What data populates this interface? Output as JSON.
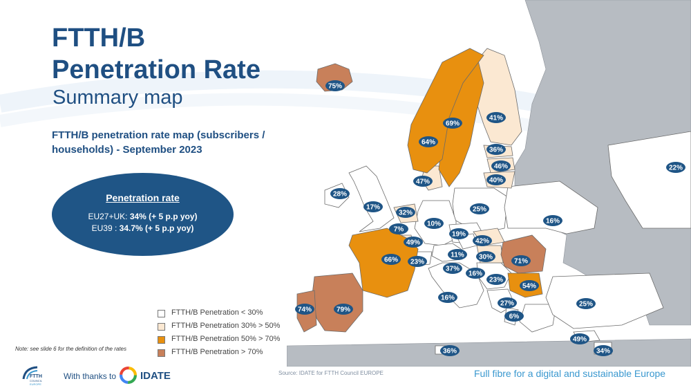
{
  "title": {
    "line1": "FTTH/B",
    "line2": "Penetration Rate",
    "subtitle": "Summary map"
  },
  "map_heading": "FTTH/B penetration rate map (subscribers / households) - September 2023",
  "summary_box": {
    "heading": "Penetration rate",
    "eu27_label": "EU27+UK: ",
    "eu27_value": "34% (+ 5 p.p yoy)",
    "eu39_label": "EU39 : ",
    "eu39_value": "34.7% (+ 5 p.p yoy)"
  },
  "legend": [
    {
      "label": "FTTH/B Penetration < 30%",
      "color": "#ffffff"
    },
    {
      "label": "FTTH/B Penetration 30% > 50%",
      "color": "#fbe8d2"
    },
    {
      "label": "FTTH/B Penetration 50% > 70%",
      "color": "#e8900f"
    },
    {
      "label": "FTTH/B Penetration > 70%",
      "color": "#c8805a"
    }
  ],
  "colors": {
    "brand_blue": "#1f4f82",
    "badge": "#1f5586",
    "land_other": "#b7bcc2",
    "sea": "#ffffff",
    "border": "#6a6a6a"
  },
  "map_labels": [
    {
      "name": "Iceland",
      "value": "75%"
    },
    {
      "name": "Finland",
      "value": "41%"
    },
    {
      "name": "Sweden",
      "value": "69%"
    },
    {
      "name": "Norway",
      "value": "64%"
    },
    {
      "name": "Estonia",
      "value": "36%"
    },
    {
      "name": "Latvia",
      "value": "46%"
    },
    {
      "name": "Lithuania",
      "value": "40%"
    },
    {
      "name": "Denmark",
      "value": "47%"
    },
    {
      "name": "Russia",
      "value": "22%"
    },
    {
      "name": "Ireland",
      "value": "28%"
    },
    {
      "name": "United Kingdom",
      "value": "17%"
    },
    {
      "name": "Netherlands",
      "value": "32%"
    },
    {
      "name": "Poland",
      "value": "25%"
    },
    {
      "name": "Belarus",
      "value": "16%"
    },
    {
      "name": "Belgium",
      "value": "7%"
    },
    {
      "name": "Germany",
      "value": "10%"
    },
    {
      "name": "Czechia",
      "value": "19%"
    },
    {
      "name": "Luxembourg",
      "value": "49%"
    },
    {
      "name": "Slovakia",
      "value": "42%"
    },
    {
      "name": "France",
      "value": "66%"
    },
    {
      "name": "Switzerland",
      "value": "23%"
    },
    {
      "name": "Austria",
      "value": "11%"
    },
    {
      "name": "Hungary",
      "value": "30%"
    },
    {
      "name": "Romania",
      "value": "71%"
    },
    {
      "name": "Slovenia",
      "value": "37%"
    },
    {
      "name": "Croatia",
      "value": "16%"
    },
    {
      "name": "Serbia",
      "value": "23%"
    },
    {
      "name": "Bulgaria",
      "value": "54%"
    },
    {
      "name": "Portugal",
      "value": "74%"
    },
    {
      "name": "Spain",
      "value": "79%"
    },
    {
      "name": "Italy",
      "value": "16%"
    },
    {
      "name": "North Macedonia",
      "value": "27%"
    },
    {
      "name": "Turkey",
      "value": "25%"
    },
    {
      "name": "Albania",
      "value": "6%"
    },
    {
      "name": "Malta",
      "value": "36%"
    },
    {
      "name": "Cyprus",
      "value": "49%"
    },
    {
      "name": "Cyprus-north",
      "value": "34%"
    }
  ],
  "note": "Note: see slide 6 for the definition of the rates",
  "footer": {
    "thanks": "With thanks to",
    "idate": "IDATE",
    "source": "Source: IDATE for FTTH Council EUROPE",
    "tagline": "Full fibre for a digital and sustainable Europe",
    "logo_text": "FTTH COUNCIL EUROPE"
  }
}
